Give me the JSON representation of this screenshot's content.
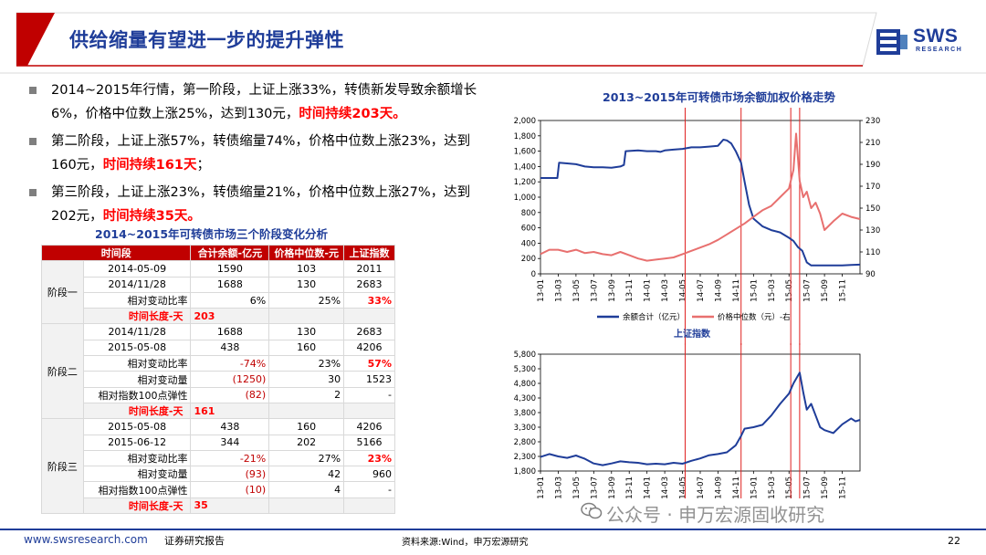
{
  "slide_title": "供给缩量有望进一步的提升弹性",
  "logo": {
    "text": "SWS",
    "sub": "RESEARCH",
    "color": "#1f3d99"
  },
  "bullets": [
    {
      "normal": "2014~2015年行情，第一阶段，上证上涨33%，转债新发导致余额增长6%，价格中位数上涨25%，达到130元，",
      "highlight": "时间持续203天。"
    },
    {
      "normal": "第二阶段，上证上涨57%，转债缩量74%，价格中位数上涨23%，达到160元，",
      "highlight": "时间持续161天",
      "tail": "；"
    },
    {
      "normal": "第三阶段，上证上涨23%，转债缩量21%，价格中位数上涨27%，达到202元，",
      "highlight": "时间持续35天。"
    }
  ],
  "table": {
    "title": "2014~2015年可转债市场三个阶段变化分析",
    "headers": [
      "时间段",
      "合计余额-亿元",
      "价格中位数-元",
      "上证指数"
    ],
    "stages": [
      {
        "name": "阶段一",
        "rows": [
          {
            "label": "2014-05-09",
            "a": "1590",
            "b": "103",
            "c": "2011"
          },
          {
            "label": "2014/11/28",
            "a": "1688",
            "b": "130",
            "c": "2683"
          },
          {
            "label": "相对变动比率",
            "a": "6%",
            "b": "25%",
            "c": "33%"
          }
        ],
        "duration_label": "时间长度-天",
        "duration": "203"
      },
      {
        "name": "阶段二",
        "rows": [
          {
            "label": "2014/11/28",
            "a": "1688",
            "b": "130",
            "c": "2683"
          },
          {
            "label": "2015-05-08",
            "a": "438",
            "b": "160",
            "c": "4206"
          },
          {
            "label": "相对变动比率",
            "a": "-74%",
            "b": "23%",
            "c": "57%"
          },
          {
            "label": "相对变动量",
            "a": "(1250)",
            "b": "30",
            "c": "1523"
          },
          {
            "label": "相对指数100点弹性",
            "a": "(82)",
            "b": "2",
            "c": "-"
          }
        ],
        "duration_label": "时间长度-天",
        "duration": "161"
      },
      {
        "name": "阶段三",
        "rows": [
          {
            "label": "2015-05-08",
            "a": "438",
            "b": "160",
            "c": "4206"
          },
          {
            "label": "2015-06-12",
            "a": "344",
            "b": "202",
            "c": "5166"
          },
          {
            "label": "相对变动比率",
            "a": "-21%",
            "b": "27%",
            "c": "23%"
          },
          {
            "label": "相对变动量",
            "a": "(93)",
            "b": "42",
            "c": "960"
          },
          {
            "label": "相对指数100点弹性",
            "a": "(10)",
            "b": "4",
            "c": "-"
          }
        ],
        "duration_label": "时间长度-天",
        "duration": "35"
      }
    ]
  },
  "chart_data": [
    {
      "type": "line",
      "title": "2013~2015年可转债市场余额加权价格走势",
      "x_ticks": [
        "13-01",
        "13-03",
        "13-05",
        "13-07",
        "13-09",
        "13-11",
        "14-01",
        "14-03",
        "14-05",
        "14-07",
        "14-09",
        "14-11",
        "15-01",
        "15-03",
        "15-05",
        "15-07",
        "15-09",
        "15-11"
      ],
      "x_range": [
        0,
        36
      ],
      "y_left": {
        "min": 0,
        "max": 2000,
        "ticks": [
          "0",
          "200",
          "400",
          "600",
          "800",
          "1,000",
          "1,200",
          "1,400",
          "1,600",
          "1,800",
          "2,000"
        ]
      },
      "y_right": {
        "min": 90,
        "max": 230,
        "ticks": [
          "90",
          "110",
          "130",
          "150",
          "170",
          "190",
          "210",
          "230"
        ]
      },
      "vlines_x": [
        16.3,
        22.6,
        28.2,
        29.2
      ],
      "series": [
        {
          "name": "余额合计（亿元）",
          "axis": "left",
          "color": "#1f3d99",
          "points": [
            [
              0,
              1250
            ],
            [
              1,
              1250
            ],
            [
              1.9,
              1250
            ],
            [
              2.1,
              1450
            ],
            [
              3,
              1440
            ],
            [
              4,
              1430
            ],
            [
              5,
              1400
            ],
            [
              6,
              1390
            ],
            [
              7,
              1390
            ],
            [
              8,
              1385
            ],
            [
              9,
              1400
            ],
            [
              9.4,
              1420
            ],
            [
              9.6,
              1600
            ],
            [
              11,
              1610
            ],
            [
              12,
              1600
            ],
            [
              13,
              1600
            ],
            [
              13.5,
              1590
            ],
            [
              14,
              1610
            ],
            [
              15,
              1620
            ],
            [
              16,
              1630
            ],
            [
              17,
              1650
            ],
            [
              18,
              1650
            ],
            [
              19,
              1660
            ],
            [
              20,
              1670
            ],
            [
              20.6,
              1750
            ],
            [
              21,
              1740
            ],
            [
              21.5,
              1700
            ],
            [
              22,
              1600
            ],
            [
              22.6,
              1450
            ],
            [
              23,
              1200
            ],
            [
              23.5,
              900
            ],
            [
              24,
              720
            ],
            [
              25,
              620
            ],
            [
              26,
              570
            ],
            [
              27,
              540
            ],
            [
              28,
              470
            ],
            [
              28.5,
              430
            ],
            [
              29,
              350
            ],
            [
              29.5,
              300
            ],
            [
              30,
              150
            ],
            [
              30.5,
              110
            ],
            [
              31,
              110
            ],
            [
              32,
              110
            ],
            [
              33,
              110
            ],
            [
              34,
              110
            ],
            [
              35,
              115
            ],
            [
              36,
              120
            ]
          ]
        },
        {
          "name": "价格中位数（元）-右",
          "axis": "right",
          "color": "#e8706f",
          "points": [
            [
              0,
              108
            ],
            [
              1,
              112
            ],
            [
              2,
              112
            ],
            [
              3,
              110
            ],
            [
              4,
              112
            ],
            [
              5,
              109
            ],
            [
              6,
              110
            ],
            [
              7,
              108
            ],
            [
              8,
              107
            ],
            [
              9,
              110
            ],
            [
              10,
              107
            ],
            [
              11,
              104
            ],
            [
              12,
              102
            ],
            [
              13,
              103
            ],
            [
              14,
              104
            ],
            [
              15,
              105
            ],
            [
              16,
              108
            ],
            [
              17,
              111
            ],
            [
              18,
              114
            ],
            [
              19,
              117
            ],
            [
              20,
              121
            ],
            [
              21,
              126
            ],
            [
              22,
              131
            ],
            [
              23,
              136
            ],
            [
              24,
              142
            ],
            [
              25,
              148
            ],
            [
              26,
              152
            ],
            [
              27,
              160
            ],
            [
              28,
              168
            ],
            [
              28.5,
              185
            ],
            [
              28.8,
              218
            ],
            [
              29.2,
              175
            ],
            [
              29.6,
              160
            ],
            [
              30,
              165
            ],
            [
              30.5,
              150
            ],
            [
              31,
              155
            ],
            [
              31.5,
              145
            ],
            [
              32,
              130
            ],
            [
              33,
              138
            ],
            [
              34,
              145
            ],
            [
              35,
              142
            ],
            [
              36,
              140
            ]
          ]
        }
      ]
    },
    {
      "type": "line",
      "title": "上证指数",
      "x_ticks": [
        "13-01",
        "13-03",
        "13-05",
        "13-07",
        "13-09",
        "13-11",
        "14-01",
        "14-03",
        "14-05",
        "14-07",
        "14-09",
        "14-11",
        "15-01",
        "15-03",
        "15-05",
        "15-07",
        "15-09",
        "15-11"
      ],
      "x_range": [
        0,
        36
      ],
      "y": {
        "min": 1800,
        "max": 5800,
        "ticks": [
          "1,800",
          "2,300",
          "2,800",
          "3,300",
          "3,800",
          "4,300",
          "4,800",
          "5,300",
          "5,800"
        ]
      },
      "vlines_x": [
        16.3,
        22.6,
        28.2,
        29.2
      ],
      "series": [
        {
          "name": "上证指数",
          "color": "#1f3d99",
          "points": [
            [
              0,
              2280
            ],
            [
              1,
              2380
            ],
            [
              2,
              2300
            ],
            [
              3,
              2250
            ],
            [
              4,
              2330
            ],
            [
              5,
              2220
            ],
            [
              6,
              2060
            ],
            [
              7,
              2000
            ],
            [
              8,
              2060
            ],
            [
              9,
              2130
            ],
            [
              10,
              2100
            ],
            [
              11,
              2080
            ],
            [
              12,
              2030
            ],
            [
              13,
              2050
            ],
            [
              14,
              2030
            ],
            [
              15,
              2080
            ],
            [
              16,
              2050
            ],
            [
              17,
              2150
            ],
            [
              18,
              2230
            ],
            [
              19,
              2340
            ],
            [
              20,
              2380
            ],
            [
              21,
              2440
            ],
            [
              22,
              2680
            ],
            [
              22.6,
              3000
            ],
            [
              23,
              3250
            ],
            [
              24,
              3300
            ],
            [
              25,
              3380
            ],
            [
              26,
              3700
            ],
            [
              27,
              4100
            ],
            [
              28,
              4450
            ],
            [
              28.5,
              4800
            ],
            [
              29.2,
              5170
            ],
            [
              29.6,
              4500
            ],
            [
              30,
              3900
            ],
            [
              30.5,
              4100
            ],
            [
              31,
              3700
            ],
            [
              31.5,
              3300
            ],
            [
              32,
              3200
            ],
            [
              33,
              3100
            ],
            [
              34,
              3400
            ],
            [
              35,
              3600
            ],
            [
              35.5,
              3500
            ],
            [
              36,
              3550
            ]
          ]
        }
      ]
    }
  ],
  "legend_items": [
    "余额合计（亿元）",
    "价格中位数（元）-右"
  ],
  "chart2_title": "上证指数",
  "watermark": "公众号 · 申万宏源固收研究",
  "footer": {
    "url": "www.swsresearch.com",
    "report": "证券研究报告",
    "source": "资料来源:Wind，申万宏源研究",
    "page": "22"
  }
}
